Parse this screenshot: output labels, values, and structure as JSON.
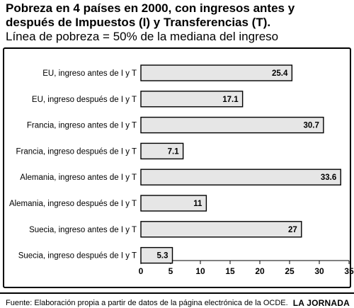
{
  "title_lines": [
    "Pobreza en 4 países en 2000, con ingresos antes y",
    "después de Impuestos (I) y Transferencias (T)."
  ],
  "subtitle": "Línea de pobreza = 50% de la mediana del ingreso",
  "footer": {
    "source": "Fuente: Elaboración propia a partir de datos de la página electrónica de la OCDE.",
    "brand": "LA JORNADA"
  },
  "colors": {
    "bar_fill": "#e6e6e6",
    "bar_stroke": "#000000",
    "text": "#000000"
  },
  "chart_data": {
    "type": "bar",
    "orientation": "horizontal",
    "categories": [
      "EU, ingreso antes de I y T",
      "EU, ingreso después de I y T",
      "Francia, ingreso antes de I y T",
      "Francia, ingreso después de I y T",
      "Alemania, ingreso antes de I y T",
      "Alemania, ingreso después de I y T",
      "Suecia, ingreso antes de I y T",
      "Suecia, ingreso después de I y T"
    ],
    "values": [
      25.4,
      17.1,
      30.7,
      7.1,
      33.6,
      11,
      27,
      5.3
    ],
    "value_labels": [
      "25.4",
      "17.1",
      "30.7",
      "7.1",
      "33.6",
      "11",
      "27",
      "5.3"
    ],
    "xlim": [
      0,
      35
    ],
    "xticks": [
      0,
      5,
      10,
      15,
      20,
      25,
      30,
      35
    ],
    "grid": false,
    "legend": "none"
  }
}
